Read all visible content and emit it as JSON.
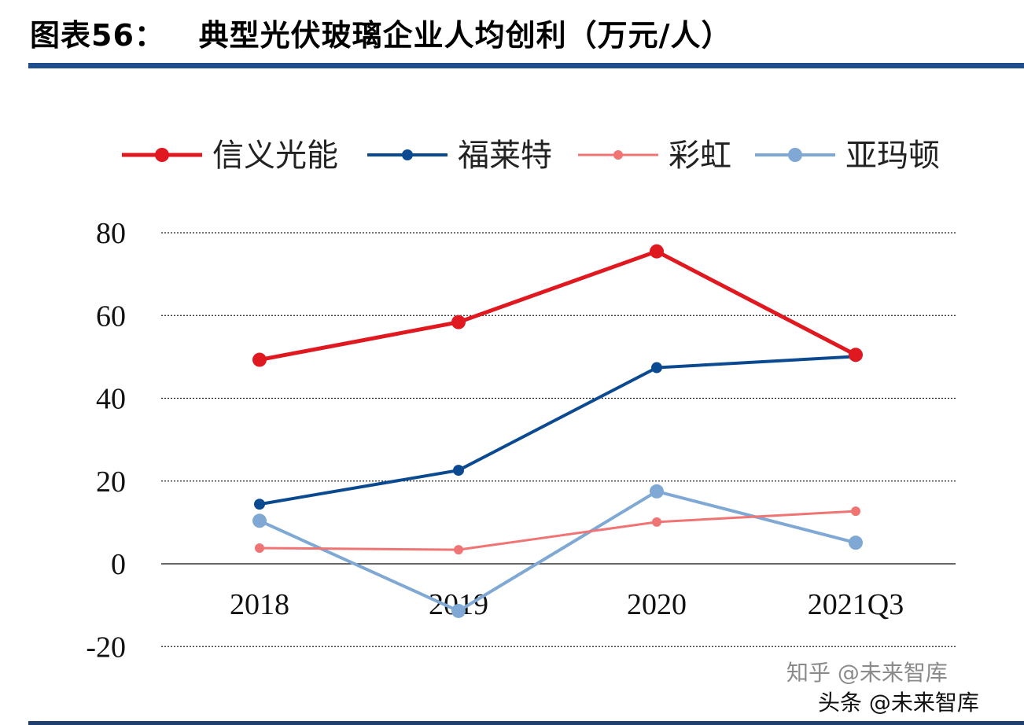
{
  "header": {
    "title": "图表56：   典型光伏玻璃企业人均创利（万元/人）"
  },
  "watermarks": [
    "知乎 @未来智库",
    "头条 @未来智库"
  ],
  "chart_data": {
    "type": "line",
    "title": "图表56：   典型光伏玻璃企业人均创利（万元/人）",
    "categories": [
      "2018",
      "2019",
      "2020",
      "2021Q3"
    ],
    "series": [
      {
        "name": "信义光能",
        "color": "#e0181f",
        "values": [
          49.3,
          58.4,
          75.5,
          50.5
        ]
      },
      {
        "name": "福莱特",
        "color": "#0b4a91",
        "values": [
          14.4,
          22.6,
          47.4,
          50.1
        ]
      },
      {
        "name": "彩虹",
        "color": "#f07474",
        "values": [
          3.8,
          3.4,
          10.1,
          12.7
        ]
      },
      {
        "name": "亚玛顿",
        "color": "#7fa9d4",
        "values": [
          10.4,
          -11.4,
          17.5,
          5.1
        ]
      }
    ],
    "yticks": [
      "80",
      "60",
      "40",
      "20",
      "0",
      "-20"
    ],
    "ylim": [
      -20,
      80
    ],
    "grid": true,
    "legend": "top"
  }
}
